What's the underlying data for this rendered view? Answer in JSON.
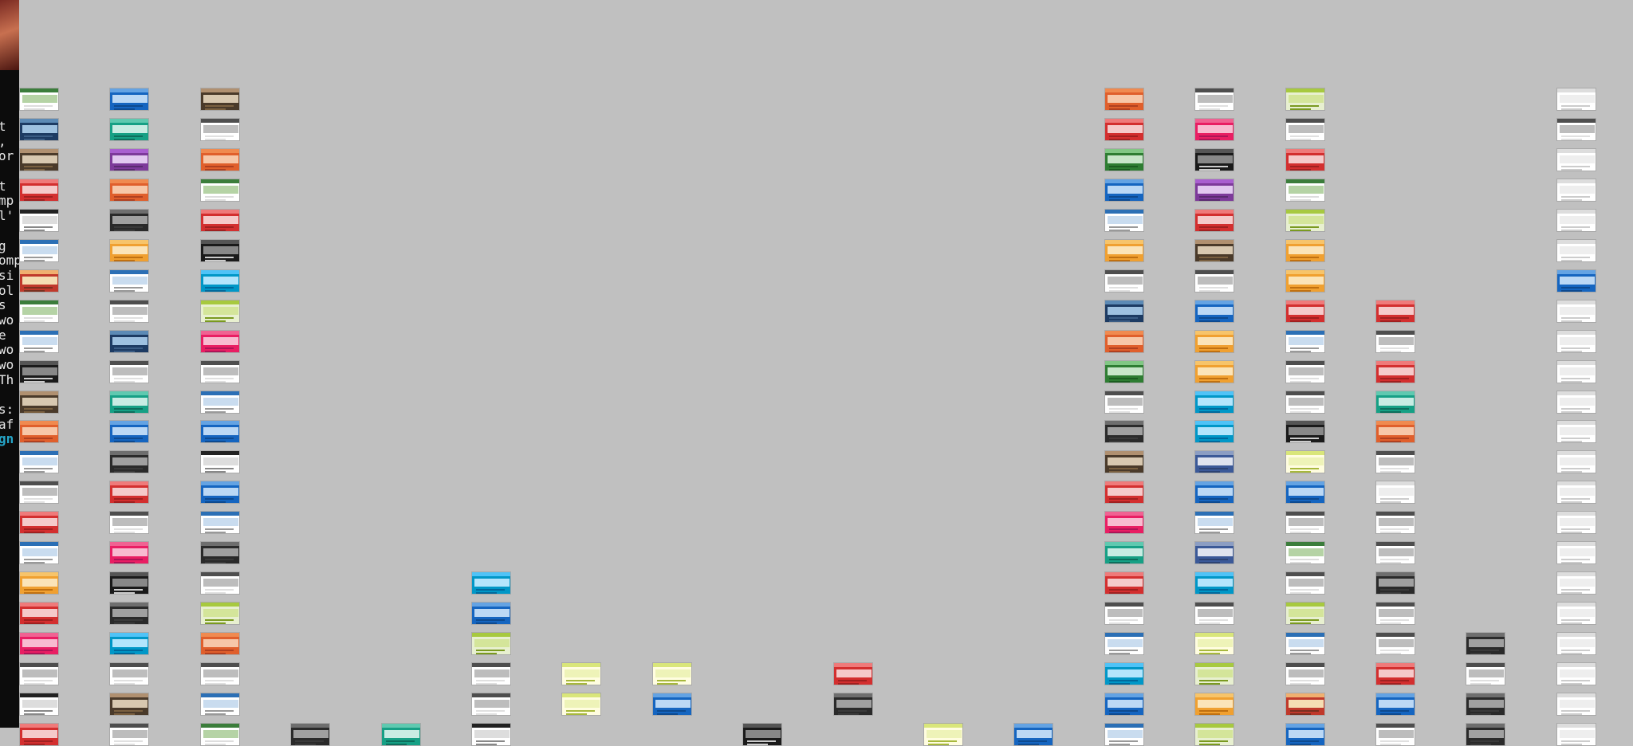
{
  "editor": {
    "lines": [
      "t",
      ",",
      "or",
      "",
      "t",
      "mp",
      "l'",
      "",
      "g",
      "omp",
      "si",
      "ol",
      "s",
      "wo",
      "e",
      "wo",
      "wo",
      "Th",
      "",
      "s:",
      "af",
      "gn"
    ],
    "highlight_line": 21
  },
  "palette": [
    [
      "#ffffff",
      "#3b7d3b",
      "#b5d3a5",
      "#dddddd"
    ],
    [
      "#1d3b63",
      "#5c8ab5",
      "#9ec1e0",
      "#3b5d85"
    ],
    [
      "#4a3a2a",
      "#b09070",
      "#d8c8b0",
      "#7a6040"
    ],
    [
      "#ffffff",
      "#222222",
      "#dddddd",
      "#888888"
    ],
    [
      "#e05f2c",
      "#f08a50",
      "#f7c7a8",
      "#b04020"
    ],
    [
      "#ffffff",
      "#2b6fb5",
      "#c9dcef",
      "#999999"
    ],
    [
      "#e8f0d0",
      "#a7c93f",
      "#d4e59a",
      "#7a9a20"
    ],
    [
      "#7d3a9a",
      "#a95fd0",
      "#e2c9f0",
      "#5a2a70"
    ],
    [
      "#1a1a1a",
      "#555555",
      "#888888",
      "#cccccc"
    ],
    [
      "#d32f2f",
      "#ef7a7a",
      "#f5caca",
      "#a02020"
    ],
    [
      "#16a085",
      "#5fc9b0",
      "#c8ece3",
      "#0d6e5c"
    ],
    [
      "#f0a030",
      "#f7c46a",
      "#fbe4b8",
      "#c07010"
    ],
    [
      "#ffffff",
      "#4e4e4e",
      "#bdbdbd",
      "#e0e0e0"
    ],
    [
      "#1565c0",
      "#64a3e3",
      "#bbd8f5",
      "#0d4a90"
    ],
    [
      "#e91e63",
      "#f06292",
      "#f8bbd0",
      "#ad1457"
    ],
    [
      "#2e7d32",
      "#81c784",
      "#c8e6c9",
      "#1b5e20"
    ],
    [
      "#2a2a2a",
      "#6e6e6e",
      "#a0a0a0",
      "#3a3a3a"
    ],
    [
      "#0097c7",
      "#4fc3f7",
      "#b3e5fc",
      "#00699c"
    ],
    [
      "#fffde0",
      "#d9e67a",
      "#eef3b8",
      "#a7b83c"
    ],
    [
      "#3b5998",
      "#8b9dc3",
      "#dfe3ee",
      "#2d4373"
    ],
    [
      "#ffffff",
      "#dddddd",
      "#eeeeee",
      "#cccccc"
    ],
    [
      "#c0392b",
      "#f0b070",
      "#f5deb3",
      "#7a3020"
    ]
  ],
  "columns": [
    {
      "col": 0,
      "start": 1,
      "end": 22,
      "tones": [
        0,
        1,
        2,
        9,
        3,
        5,
        21,
        0,
        5,
        8,
        2,
        4,
        5,
        12,
        9,
        5,
        11,
        9,
        14,
        12,
        3,
        9
      ]
    },
    {
      "col": 1,
      "start": 1,
      "end": 22,
      "tones": [
        13,
        10,
        7,
        4,
        16,
        11,
        5,
        12,
        1,
        12,
        10,
        13,
        16,
        9,
        12,
        14,
        8,
        16,
        17,
        12,
        2,
        12
      ]
    },
    {
      "col": 2,
      "start": 1,
      "end": 22,
      "tones": [
        2,
        12,
        4,
        0,
        9,
        8,
        17,
        6,
        14,
        12,
        5,
        13,
        3,
        13,
        5,
        16,
        12,
        6,
        4,
        12,
        5,
        0
      ]
    },
    {
      "col": 3,
      "start": 22,
      "end": 22,
      "tones": [
        16
      ]
    },
    {
      "col": 4,
      "start": 22,
      "end": 22,
      "tones": [
        10
      ]
    },
    {
      "col": 5,
      "start": 17,
      "end": 22,
      "tones": [
        17,
        13,
        6,
        12,
        12,
        3
      ]
    },
    {
      "col": 6,
      "start": 20,
      "end": 22,
      "tones": [
        18,
        18
      ]
    },
    {
      "col": 7,
      "start": 20,
      "end": 22,
      "tones": [
        18,
        13
      ]
    },
    {
      "col": 8,
      "start": 22,
      "end": 22,
      "tones": [
        8
      ]
    },
    {
      "col": 9,
      "start": 20,
      "end": 22,
      "tones": [
        9,
        16
      ]
    },
    {
      "col": 10,
      "start": 22,
      "end": 22,
      "tones": [
        18
      ]
    },
    {
      "col": 11,
      "start": 22,
      "end": 22,
      "tones": [
        13
      ]
    },
    {
      "col": 12,
      "start": 1,
      "end": 22,
      "tones": [
        4,
        9,
        15,
        13,
        5,
        11,
        12,
        1,
        4,
        15,
        12,
        16,
        2,
        9,
        14,
        10,
        9,
        12,
        5,
        17,
        13,
        5
      ]
    },
    {
      "col": 13,
      "start": 1,
      "end": 22,
      "tones": [
        12,
        14,
        8,
        7,
        9,
        2,
        12,
        13,
        11,
        11,
        17,
        17,
        19,
        13,
        5,
        19,
        17,
        12,
        18,
        6,
        11,
        6
      ]
    },
    {
      "col": 14,
      "start": 1,
      "end": 22,
      "tones": [
        6,
        12,
        9,
        0,
        6,
        11,
        11,
        9,
        5,
        12,
        12,
        8,
        18,
        13,
        12,
        0,
        12,
        6,
        5,
        12,
        21,
        13
      ]
    },
    {
      "col": 15,
      "start": 8,
      "end": 22,
      "tones": [
        9,
        12,
        9,
        10,
        4,
        12,
        20,
        12,
        12,
        16,
        12,
        12,
        9,
        13,
        12
      ]
    },
    {
      "col": 16,
      "start": 19,
      "end": 22,
      "tones": [
        16,
        12,
        16,
        16
      ]
    },
    {
      "col": 17,
      "start": 1,
      "end": 22,
      "tones": [
        20,
        12,
        20,
        20,
        20,
        20,
        13,
        20,
        20,
        20,
        20,
        20,
        20,
        20,
        20,
        20,
        20,
        20,
        20,
        20,
        20,
        20
      ]
    }
  ]
}
